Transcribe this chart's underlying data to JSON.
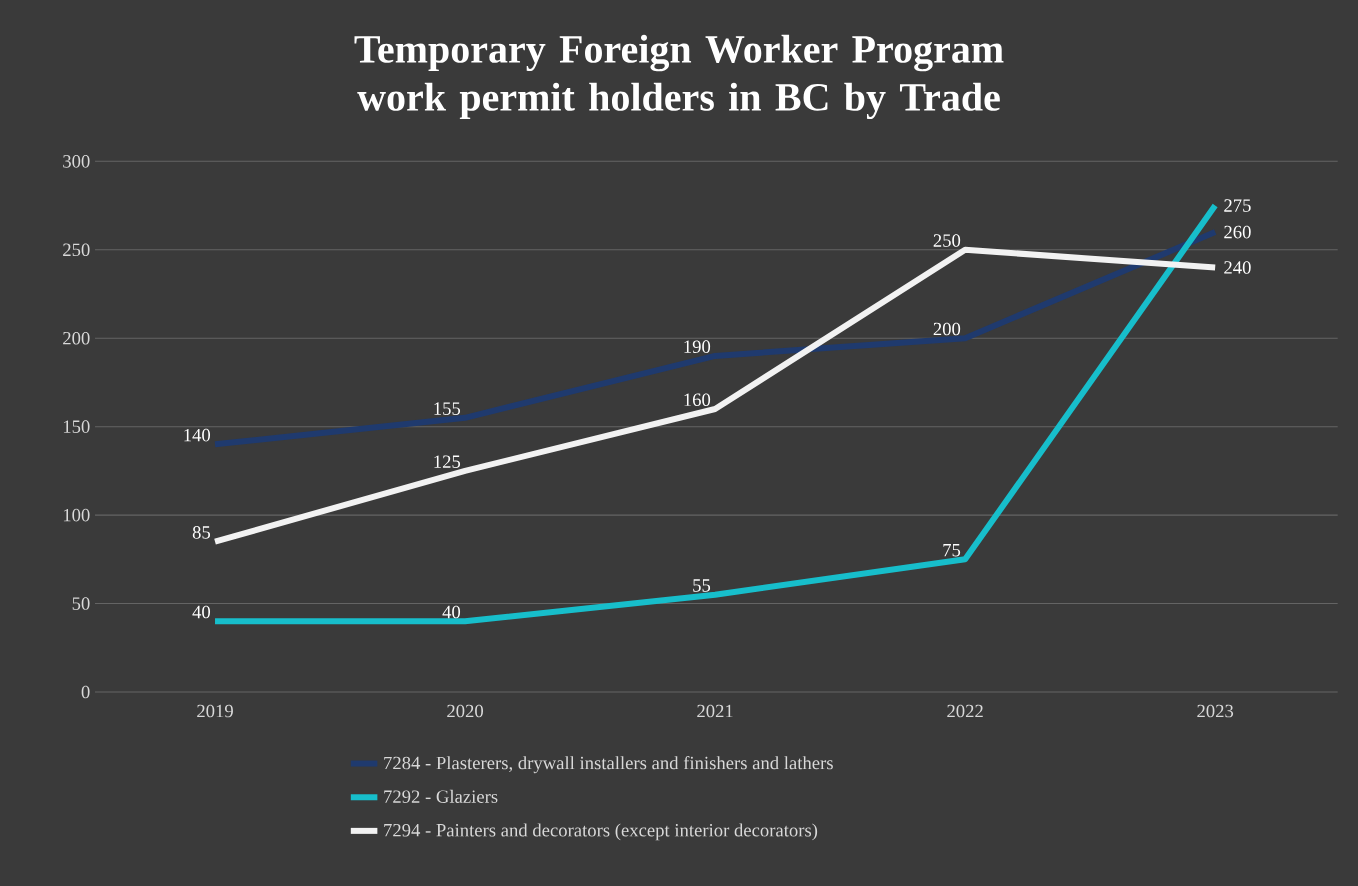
{
  "chart_data": {
    "type": "line",
    "title": "Temporary Foreign Worker Program work permit holders in BC by Trade",
    "categories": [
      "2019",
      "2020",
      "2021",
      "2022",
      "2023"
    ],
    "series": [
      {
        "name": "7284 - Plasterers, drywall installers and finishers and lathers",
        "color": "#1f3a6e",
        "values": [
          140,
          155,
          190,
          200,
          260
        ]
      },
      {
        "name": "7292 - Glaziers",
        "color": "#17becb",
        "values": [
          40,
          40,
          55,
          75,
          275
        ]
      },
      {
        "name": "7294 - Painters and decorators (except interior decorators)",
        "color": "#f2f2f2",
        "values": [
          85,
          125,
          160,
          250,
          240
        ]
      }
    ],
    "ylim": [
      0,
      300
    ],
    "yticks": [
      0,
      50,
      100,
      150,
      200,
      250,
      300
    ],
    "grid": "y",
    "legend": "bottom",
    "data_labels": true,
    "marker": "none",
    "line_style": "solid"
  }
}
